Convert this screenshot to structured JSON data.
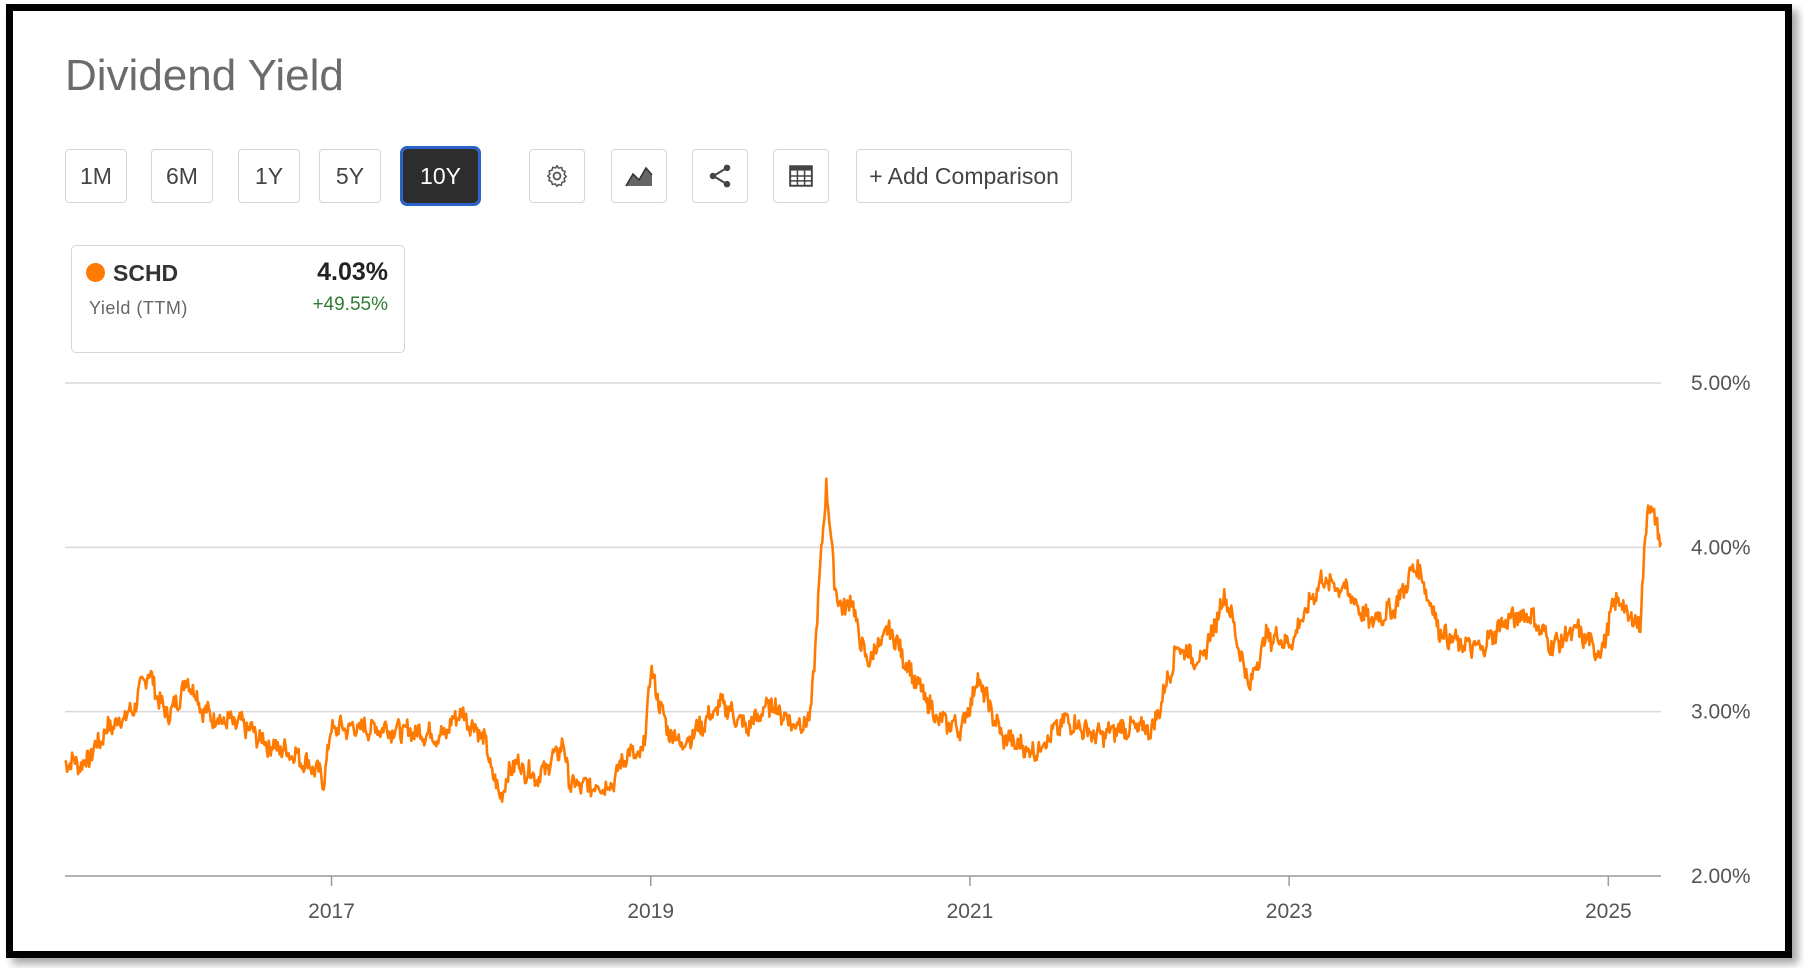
{
  "header": {
    "title": "Dividend Yield"
  },
  "toolbar": {
    "ranges": [
      {
        "label": "1M",
        "active": false
      },
      {
        "label": "6M",
        "active": false
      },
      {
        "label": "1Y",
        "active": false
      },
      {
        "label": "5Y",
        "active": false
      },
      {
        "label": "10Y",
        "active": true
      }
    ],
    "icons": [
      "settings-gear-icon",
      "chart-type-icon",
      "share-icon",
      "table-icon"
    ],
    "add_comparison_label": "+ Add Comparison"
  },
  "legend": {
    "ticker": "SCHD",
    "metric": "Yield (TTM)",
    "value": "4.03%",
    "change": "+49.55%",
    "color": "#ff7a00",
    "change_color": "#2e7d32"
  },
  "chart_data": {
    "type": "line",
    "title": "Dividend Yield",
    "xlabel": "",
    "ylabel": "",
    "x_tick_labels": [
      "2017",
      "2019",
      "2021",
      "2023",
      "2025"
    ],
    "y_tick_labels": [
      "5.00%",
      "4.00%",
      "3.00%",
      "2.00%"
    ],
    "ylim": [
      2.0,
      5.0
    ],
    "xlim": [
      2015.33,
      2025.33
    ],
    "grid": true,
    "y_axis_side": "right",
    "series": [
      {
        "name": "SCHD",
        "color": "#ff7a00",
        "x": [
          2015.33,
          2015.45,
          2015.6,
          2015.75,
          2015.85,
          2015.95,
          2016.0,
          2016.1,
          2016.2,
          2016.3,
          2016.45,
          2016.6,
          2016.75,
          2016.9,
          2016.95,
          2017.0,
          2017.1,
          2017.3,
          2017.5,
          2017.7,
          2017.8,
          2017.95,
          2018.05,
          2018.15,
          2018.2,
          2018.3,
          2018.45,
          2018.5,
          2018.6,
          2018.75,
          2018.85,
          2018.95,
          2019.0,
          2019.1,
          2019.2,
          2019.35,
          2019.45,
          2019.6,
          2019.75,
          2019.9,
          2020.0,
          2020.1,
          2020.15,
          2020.2,
          2020.25,
          2020.35,
          2020.5,
          2020.65,
          2020.8,
          2020.95,
          2021.05,
          2021.2,
          2021.4,
          2021.6,
          2021.8,
          2021.95,
          2022.05,
          2022.15,
          2022.3,
          2022.45,
          2022.6,
          2022.75,
          2022.85,
          2022.95,
          2023.0,
          2023.1,
          2023.2,
          2023.35,
          2023.5,
          2023.65,
          2023.8,
          2023.95,
          2024.05,
          2024.2,
          2024.35,
          2024.5,
          2024.65,
          2024.8,
          2024.95,
          2025.05,
          2025.15,
          2025.2,
          2025.25,
          2025.33
        ],
        "y": [
          2.7,
          2.68,
          2.9,
          3.0,
          3.25,
          3.0,
          3.0,
          3.2,
          3.0,
          2.95,
          2.92,
          2.8,
          2.75,
          2.65,
          2.58,
          2.9,
          2.9,
          2.9,
          2.88,
          2.85,
          3.0,
          2.85,
          2.48,
          2.7,
          2.65,
          2.6,
          2.8,
          2.55,
          2.55,
          2.55,
          2.75,
          2.72,
          3.25,
          2.9,
          2.8,
          2.95,
          3.05,
          2.9,
          3.05,
          2.92,
          2.95,
          4.4,
          3.8,
          3.6,
          3.7,
          3.3,
          3.5,
          3.2,
          2.95,
          2.9,
          3.2,
          2.85,
          2.75,
          2.95,
          2.85,
          2.9,
          2.9,
          2.9,
          3.4,
          3.3,
          3.72,
          3.15,
          3.45,
          3.45,
          3.4,
          3.6,
          3.8,
          3.75,
          3.55,
          3.62,
          3.9,
          3.48,
          3.42,
          3.38,
          3.55,
          3.6,
          3.4,
          3.5,
          3.35,
          3.7,
          3.55,
          3.55,
          4.3,
          4.03
        ]
      }
    ]
  }
}
